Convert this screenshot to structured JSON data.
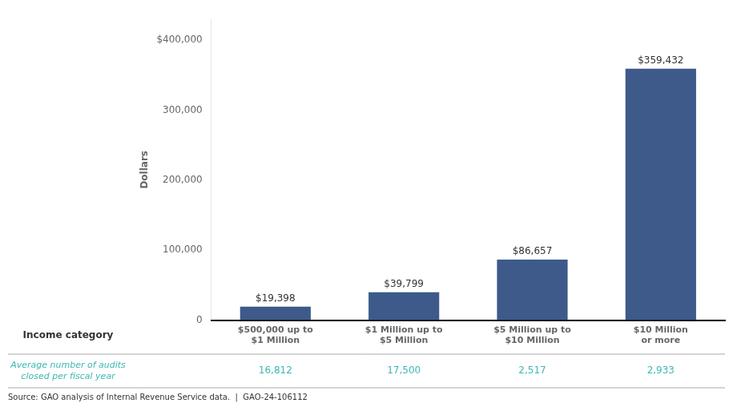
{
  "chart_data": {
    "type": "bar",
    "categories": [
      "$500,000 up to\n$1 Million",
      "$1 Million up to\n$5 Million",
      "$5 Million up to\n$10 Million",
      "$10 Million\nor more"
    ],
    "values": [
      19398,
      39799,
      86657,
      359432
    ],
    "value_labels": [
      "$19,398",
      "$39,799",
      "$86,657",
      "$359,432"
    ],
    "data_labels": true,
    "color": "#3d5a8a",
    "ylim": [
      0,
      430000
    ],
    "yticks": [
      0,
      {
        "value": 100000,
        "label": "100,000"
      },
      {
        "value": 200000,
        "label": "200,000"
      },
      {
        "value": 300000,
        "label": "300,000"
      },
      {
        "value": 400000,
        "label": "$400,000"
      }
    ],
    "grid": false,
    "y_label": "Dollars",
    "x_label": "Income category",
    "audits": {
      "label": "Average number of audits\nclosed per fiscal year",
      "values": [
        16812,
        17500,
        2517,
        2933
      ],
      "value_labels": [
        "16,812",
        "17,500",
        "2,517",
        "2,933"
      ],
      "color": "#3cb8b2"
    },
    "source": "Source: GAO analysis of Internal Revenue Service data.  |  GAO-24-106112"
  }
}
